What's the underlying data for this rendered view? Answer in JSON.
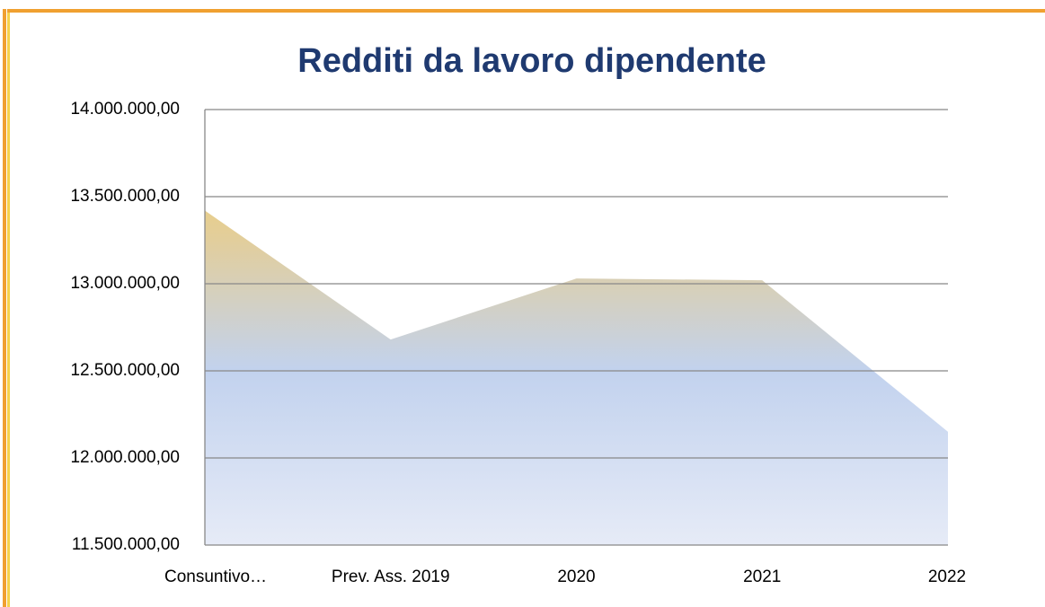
{
  "chart_data": {
    "type": "area",
    "title": "Redditi da lavoro dipendente",
    "categories": [
      "Consuntivo…",
      "Prev. Ass. 2019",
      "2020",
      "2021",
      "2022"
    ],
    "values": [
      13420000,
      12680000,
      13030000,
      13020000,
      12150000
    ],
    "ylim": [
      11500000,
      14000000
    ],
    "yticks": [
      {
        "value": 11500000,
        "label": "11.500.000,00"
      },
      {
        "value": 12000000,
        "label": "12.000.000,00"
      },
      {
        "value": 12500000,
        "label": "12.500.000,00"
      },
      {
        "value": 13000000,
        "label": "13.000.000,00"
      },
      {
        "value": 13500000,
        "label": "13.500.000,00"
      },
      {
        "value": 14000000,
        "label": "14.000.000,00"
      }
    ],
    "grid": true
  }
}
